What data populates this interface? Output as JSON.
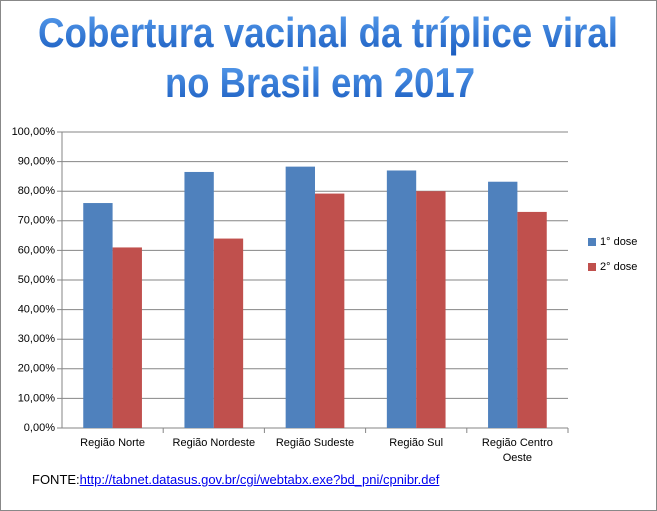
{
  "chart_data": {
    "type": "bar",
    "title": [
      "Cobertura vacinal da tríplice viral",
      "no Brasil em 2017"
    ],
    "categories": [
      "Região Norte",
      "Região Nordeste",
      "Região Sudeste",
      "Região Sul",
      "Região Centro Oeste"
    ],
    "series": [
      {
        "name": "1° dose",
        "color": "#4f81bd",
        "values": [
          76,
          86.5,
          88.3,
          87,
          83.2
        ]
      },
      {
        "name": "2° dose",
        "color": "#c0504d",
        "values": [
          61,
          64,
          79.2,
          80,
          73
        ]
      }
    ],
    "ylim": [
      0,
      100
    ],
    "yticks": [
      {
        "value": 0,
        "label": "0,00%"
      },
      {
        "value": 10,
        "label": "10,00%"
      },
      {
        "value": 20,
        "label": "20,00%"
      },
      {
        "value": 30,
        "label": "30,00%"
      },
      {
        "value": 40,
        "label": "40,00%"
      },
      {
        "value": 50,
        "label": "50,00%"
      },
      {
        "value": 60,
        "label": "60,00%"
      },
      {
        "value": 70,
        "label": "70,00%"
      },
      {
        "value": 80,
        "label": "80,00%"
      },
      {
        "value": 90,
        "label": "90,00%"
      },
      {
        "value": 100,
        "label": "100,00%"
      }
    ],
    "grid": true,
    "legend": "right",
    "source_label": "FONTE:",
    "source_url": "http://tabnet.datasus.gov.br/cgi/webtabx.exe?bd_pni/cpnibr.def"
  }
}
